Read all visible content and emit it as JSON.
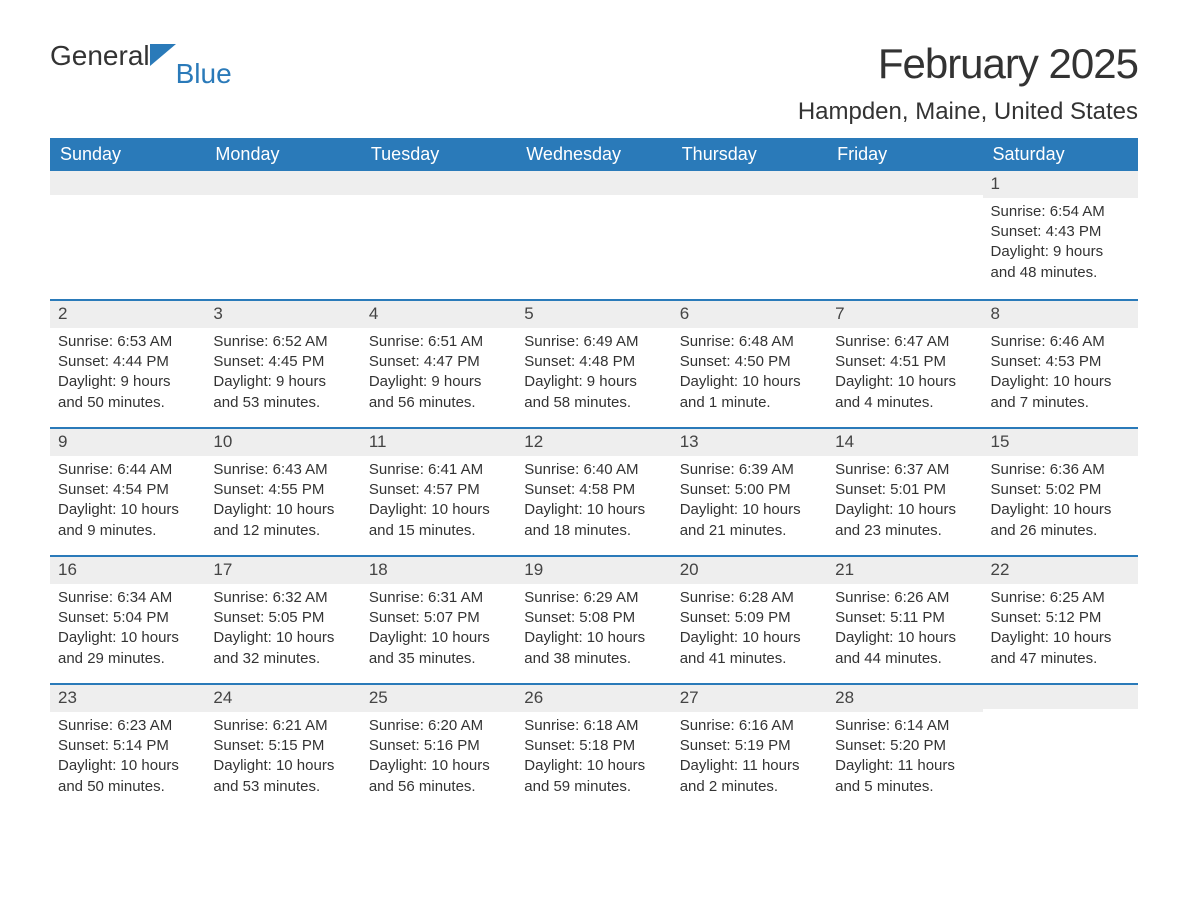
{
  "brand": {
    "part1": "General",
    "part2": "Blue"
  },
  "title": "February 2025",
  "location": "Hampden, Maine, United States",
  "colors": {
    "header_bg": "#2a7ab9",
    "header_text": "#ffffff",
    "daynum_bg": "#eeeeee",
    "text": "#333333",
    "rule": "#2a7ab9",
    "page_bg": "#ffffff"
  },
  "layout": {
    "columns": 7,
    "rows": 5,
    "title_fontsize": 42,
    "location_fontsize": 24,
    "weekday_fontsize": 18,
    "body_fontsize": 15
  },
  "weekdays": [
    "Sunday",
    "Monday",
    "Tuesday",
    "Wednesday",
    "Thursday",
    "Friday",
    "Saturday"
  ],
  "weeks": [
    [
      {
        "n": "",
        "sunrise": "",
        "sunset": "",
        "daylight": ""
      },
      {
        "n": "",
        "sunrise": "",
        "sunset": "",
        "daylight": ""
      },
      {
        "n": "",
        "sunrise": "",
        "sunset": "",
        "daylight": ""
      },
      {
        "n": "",
        "sunrise": "",
        "sunset": "",
        "daylight": ""
      },
      {
        "n": "",
        "sunrise": "",
        "sunset": "",
        "daylight": ""
      },
      {
        "n": "",
        "sunrise": "",
        "sunset": "",
        "daylight": ""
      },
      {
        "n": "1",
        "sunrise": "Sunrise: 6:54 AM",
        "sunset": "Sunset: 4:43 PM",
        "daylight": "Daylight: 9 hours and 48 minutes."
      }
    ],
    [
      {
        "n": "2",
        "sunrise": "Sunrise: 6:53 AM",
        "sunset": "Sunset: 4:44 PM",
        "daylight": "Daylight: 9 hours and 50 minutes."
      },
      {
        "n": "3",
        "sunrise": "Sunrise: 6:52 AM",
        "sunset": "Sunset: 4:45 PM",
        "daylight": "Daylight: 9 hours and 53 minutes."
      },
      {
        "n": "4",
        "sunrise": "Sunrise: 6:51 AM",
        "sunset": "Sunset: 4:47 PM",
        "daylight": "Daylight: 9 hours and 56 minutes."
      },
      {
        "n": "5",
        "sunrise": "Sunrise: 6:49 AM",
        "sunset": "Sunset: 4:48 PM",
        "daylight": "Daylight: 9 hours and 58 minutes."
      },
      {
        "n": "6",
        "sunrise": "Sunrise: 6:48 AM",
        "sunset": "Sunset: 4:50 PM",
        "daylight": "Daylight: 10 hours and 1 minute."
      },
      {
        "n": "7",
        "sunrise": "Sunrise: 6:47 AM",
        "sunset": "Sunset: 4:51 PM",
        "daylight": "Daylight: 10 hours and 4 minutes."
      },
      {
        "n": "8",
        "sunrise": "Sunrise: 6:46 AM",
        "sunset": "Sunset: 4:53 PM",
        "daylight": "Daylight: 10 hours and 7 minutes."
      }
    ],
    [
      {
        "n": "9",
        "sunrise": "Sunrise: 6:44 AM",
        "sunset": "Sunset: 4:54 PM",
        "daylight": "Daylight: 10 hours and 9 minutes."
      },
      {
        "n": "10",
        "sunrise": "Sunrise: 6:43 AM",
        "sunset": "Sunset: 4:55 PM",
        "daylight": "Daylight: 10 hours and 12 minutes."
      },
      {
        "n": "11",
        "sunrise": "Sunrise: 6:41 AM",
        "sunset": "Sunset: 4:57 PM",
        "daylight": "Daylight: 10 hours and 15 minutes."
      },
      {
        "n": "12",
        "sunrise": "Sunrise: 6:40 AM",
        "sunset": "Sunset: 4:58 PM",
        "daylight": "Daylight: 10 hours and 18 minutes."
      },
      {
        "n": "13",
        "sunrise": "Sunrise: 6:39 AM",
        "sunset": "Sunset: 5:00 PM",
        "daylight": "Daylight: 10 hours and 21 minutes."
      },
      {
        "n": "14",
        "sunrise": "Sunrise: 6:37 AM",
        "sunset": "Sunset: 5:01 PM",
        "daylight": "Daylight: 10 hours and 23 minutes."
      },
      {
        "n": "15",
        "sunrise": "Sunrise: 6:36 AM",
        "sunset": "Sunset: 5:02 PM",
        "daylight": "Daylight: 10 hours and 26 minutes."
      }
    ],
    [
      {
        "n": "16",
        "sunrise": "Sunrise: 6:34 AM",
        "sunset": "Sunset: 5:04 PM",
        "daylight": "Daylight: 10 hours and 29 minutes."
      },
      {
        "n": "17",
        "sunrise": "Sunrise: 6:32 AM",
        "sunset": "Sunset: 5:05 PM",
        "daylight": "Daylight: 10 hours and 32 minutes."
      },
      {
        "n": "18",
        "sunrise": "Sunrise: 6:31 AM",
        "sunset": "Sunset: 5:07 PM",
        "daylight": "Daylight: 10 hours and 35 minutes."
      },
      {
        "n": "19",
        "sunrise": "Sunrise: 6:29 AM",
        "sunset": "Sunset: 5:08 PM",
        "daylight": "Daylight: 10 hours and 38 minutes."
      },
      {
        "n": "20",
        "sunrise": "Sunrise: 6:28 AM",
        "sunset": "Sunset: 5:09 PM",
        "daylight": "Daylight: 10 hours and 41 minutes."
      },
      {
        "n": "21",
        "sunrise": "Sunrise: 6:26 AM",
        "sunset": "Sunset: 5:11 PM",
        "daylight": "Daylight: 10 hours and 44 minutes."
      },
      {
        "n": "22",
        "sunrise": "Sunrise: 6:25 AM",
        "sunset": "Sunset: 5:12 PM",
        "daylight": "Daylight: 10 hours and 47 minutes."
      }
    ],
    [
      {
        "n": "23",
        "sunrise": "Sunrise: 6:23 AM",
        "sunset": "Sunset: 5:14 PM",
        "daylight": "Daylight: 10 hours and 50 minutes."
      },
      {
        "n": "24",
        "sunrise": "Sunrise: 6:21 AM",
        "sunset": "Sunset: 5:15 PM",
        "daylight": "Daylight: 10 hours and 53 minutes."
      },
      {
        "n": "25",
        "sunrise": "Sunrise: 6:20 AM",
        "sunset": "Sunset: 5:16 PM",
        "daylight": "Daylight: 10 hours and 56 minutes."
      },
      {
        "n": "26",
        "sunrise": "Sunrise: 6:18 AM",
        "sunset": "Sunset: 5:18 PM",
        "daylight": "Daylight: 10 hours and 59 minutes."
      },
      {
        "n": "27",
        "sunrise": "Sunrise: 6:16 AM",
        "sunset": "Sunset: 5:19 PM",
        "daylight": "Daylight: 11 hours and 2 minutes."
      },
      {
        "n": "28",
        "sunrise": "Sunrise: 6:14 AM",
        "sunset": "Sunset: 5:20 PM",
        "daylight": "Daylight: 11 hours and 5 minutes."
      },
      {
        "n": "",
        "sunrise": "",
        "sunset": "",
        "daylight": ""
      }
    ]
  ]
}
